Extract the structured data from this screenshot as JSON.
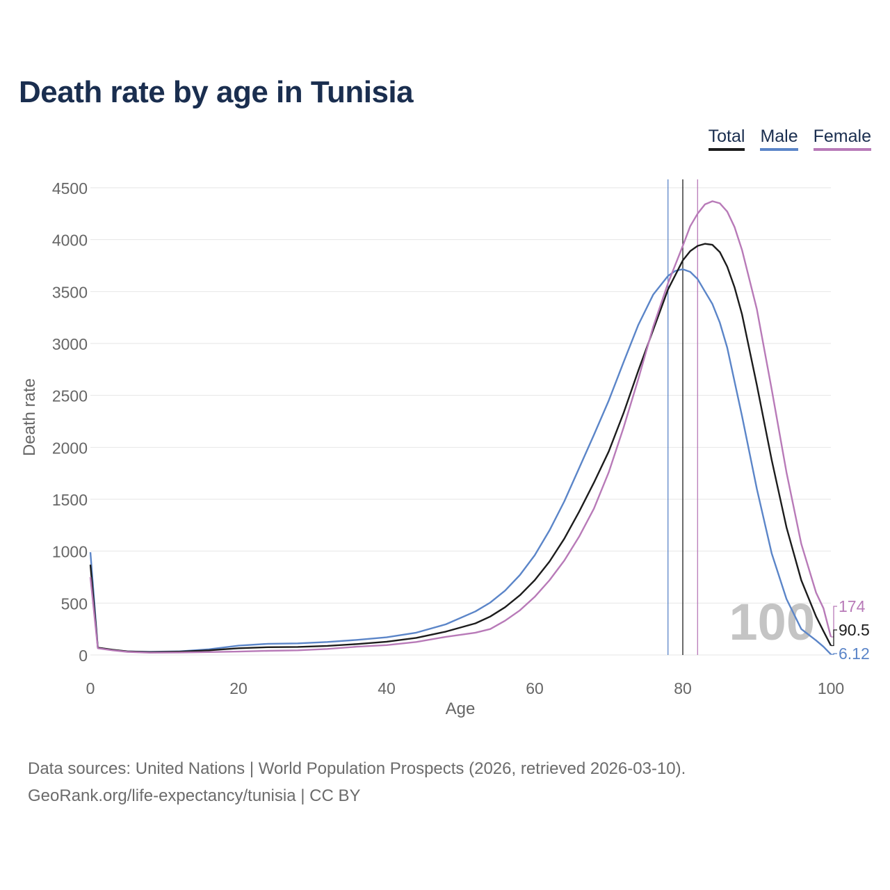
{
  "title": "Death rate by age in Tunisia",
  "legend": [
    {
      "label": "Total",
      "color": "#1c1c1c"
    },
    {
      "label": "Male",
      "color": "#5b85c8"
    },
    {
      "label": "Female",
      "color": "#b87ab8"
    }
  ],
  "sources": {
    "line1": "Data sources: United Nations | World Population Prospects (2026, retrieved 2026-03-10).",
    "line2": "GeoRank.org/life-expectancy/tunisia | CC BY"
  },
  "chart_data": {
    "type": "line",
    "title": "Death rate by age in Tunisia",
    "xlabel": "Age",
    "ylabel": "Death rate",
    "xlim": [
      0,
      100
    ],
    "ylim": [
      0,
      4500
    ],
    "x_ticks": [
      0,
      20,
      40,
      60,
      80,
      100
    ],
    "x_tick_labels": [
      "0",
      "20",
      "40",
      "60",
      "80",
      "100"
    ],
    "y_ticks": [
      0,
      500,
      1000,
      1500,
      2000,
      2500,
      3000,
      3500,
      4000,
      4500
    ],
    "y_tick_labels": [
      "0",
      "500",
      "1000",
      "1500",
      "2000",
      "2500",
      "3000",
      "3500",
      "4000",
      "4500"
    ],
    "grid": true,
    "age_watermark": "100",
    "vertical_markers": [
      {
        "series": "Male",
        "x": 78
      },
      {
        "series": "Total",
        "x": 80
      },
      {
        "series": "Female",
        "x": 82
      }
    ],
    "end_labels": [
      {
        "series": "Female",
        "text": "174",
        "value": 174
      },
      {
        "series": "Total",
        "text": "90.5",
        "value": 90.5
      },
      {
        "series": "Male",
        "text": "6.12",
        "value": 6.12
      }
    ],
    "series": [
      {
        "name": "Total",
        "color": "#1c1c1c",
        "points": [
          [
            0,
            870
          ],
          [
            1,
            70
          ],
          [
            3,
            50
          ],
          [
            5,
            35
          ],
          [
            8,
            28
          ],
          [
            12,
            32
          ],
          [
            16,
            45
          ],
          [
            20,
            65
          ],
          [
            24,
            75
          ],
          [
            28,
            78
          ],
          [
            32,
            88
          ],
          [
            36,
            105
          ],
          [
            40,
            128
          ],
          [
            44,
            165
          ],
          [
            48,
            225
          ],
          [
            52,
            305
          ],
          [
            54,
            370
          ],
          [
            56,
            460
          ],
          [
            58,
            575
          ],
          [
            60,
            720
          ],
          [
            62,
            900
          ],
          [
            64,
            1120
          ],
          [
            66,
            1380
          ],
          [
            68,
            1660
          ],
          [
            70,
            1960
          ],
          [
            72,
            2330
          ],
          [
            74,
            2740
          ],
          [
            76,
            3130
          ],
          [
            78,
            3520
          ],
          [
            80,
            3800
          ],
          [
            81,
            3890
          ],
          [
            82,
            3940
          ],
          [
            83,
            3960
          ],
          [
            84,
            3950
          ],
          [
            85,
            3880
          ],
          [
            86,
            3740
          ],
          [
            87,
            3540
          ],
          [
            88,
            3280
          ],
          [
            90,
            2600
          ],
          [
            92,
            1880
          ],
          [
            94,
            1230
          ],
          [
            96,
            720
          ],
          [
            98,
            370
          ],
          [
            99,
            230
          ],
          [
            100,
            90.5
          ]
        ]
      },
      {
        "name": "Male",
        "color": "#5b85c8",
        "points": [
          [
            0,
            990
          ],
          [
            1,
            70
          ],
          [
            3,
            48
          ],
          [
            5,
            35
          ],
          [
            8,
            30
          ],
          [
            12,
            35
          ],
          [
            16,
            55
          ],
          [
            20,
            90
          ],
          [
            24,
            108
          ],
          [
            28,
            112
          ],
          [
            32,
            125
          ],
          [
            36,
            145
          ],
          [
            40,
            170
          ],
          [
            44,
            215
          ],
          [
            48,
            295
          ],
          [
            52,
            420
          ],
          [
            54,
            505
          ],
          [
            56,
            620
          ],
          [
            58,
            770
          ],
          [
            60,
            960
          ],
          [
            62,
            1200
          ],
          [
            64,
            1480
          ],
          [
            66,
            1800
          ],
          [
            68,
            2120
          ],
          [
            70,
            2450
          ],
          [
            72,
            2820
          ],
          [
            74,
            3180
          ],
          [
            76,
            3470
          ],
          [
            78,
            3650
          ],
          [
            79,
            3700
          ],
          [
            80,
            3715
          ],
          [
            81,
            3690
          ],
          [
            82,
            3620
          ],
          [
            83,
            3500
          ],
          [
            84,
            3380
          ],
          [
            85,
            3200
          ],
          [
            86,
            2960
          ],
          [
            88,
            2300
          ],
          [
            90,
            1600
          ],
          [
            92,
            980
          ],
          [
            94,
            540
          ],
          [
            96,
            250
          ],
          [
            98,
            140
          ],
          [
            99,
            80
          ],
          [
            100,
            6.12
          ]
        ]
      },
      {
        "name": "Female",
        "color": "#b87ab8",
        "points": [
          [
            0,
            750
          ],
          [
            1,
            65
          ],
          [
            3,
            45
          ],
          [
            5,
            30
          ],
          [
            8,
            22
          ],
          [
            12,
            24
          ],
          [
            16,
            28
          ],
          [
            20,
            33
          ],
          [
            24,
            40
          ],
          [
            28,
            45
          ],
          [
            32,
            58
          ],
          [
            36,
            80
          ],
          [
            40,
            95
          ],
          [
            44,
            125
          ],
          [
            48,
            175
          ],
          [
            52,
            215
          ],
          [
            54,
            250
          ],
          [
            56,
            330
          ],
          [
            58,
            430
          ],
          [
            60,
            560
          ],
          [
            62,
            720
          ],
          [
            64,
            910
          ],
          [
            66,
            1140
          ],
          [
            68,
            1410
          ],
          [
            70,
            1760
          ],
          [
            72,
            2190
          ],
          [
            74,
            2660
          ],
          [
            76,
            3160
          ],
          [
            78,
            3580
          ],
          [
            80,
            3940
          ],
          [
            81,
            4130
          ],
          [
            82,
            4250
          ],
          [
            83,
            4340
          ],
          [
            84,
            4370
          ],
          [
            85,
            4350
          ],
          [
            86,
            4270
          ],
          [
            87,
            4120
          ],
          [
            88,
            3900
          ],
          [
            90,
            3330
          ],
          [
            92,
            2560
          ],
          [
            94,
            1760
          ],
          [
            96,
            1070
          ],
          [
            98,
            600
          ],
          [
            99,
            450
          ],
          [
            100,
            174
          ]
        ]
      }
    ]
  }
}
